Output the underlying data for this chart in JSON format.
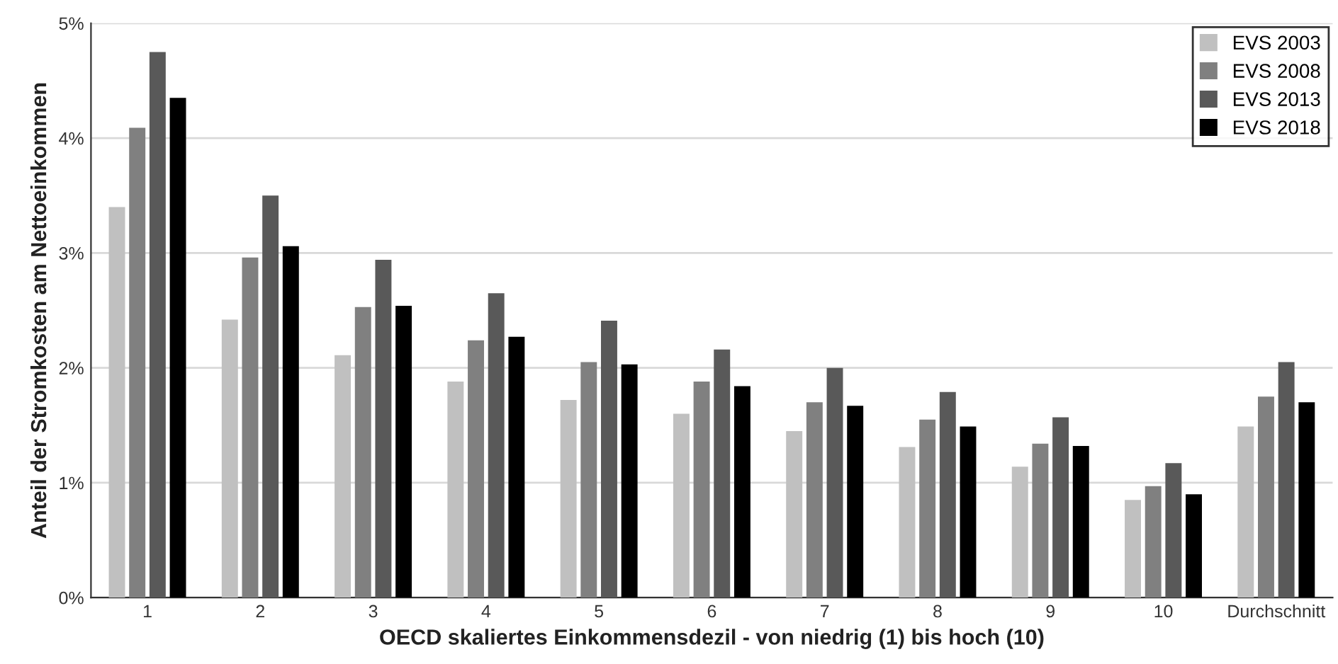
{
  "chart_data": {
    "type": "bar",
    "xlabel": "OECD skaliertes Einkommensdezil - von niedrig (1) bis hoch (10)",
    "ylabel": "Anteil der Stromkosten am Nettoeinkommen",
    "categories": [
      "1",
      "2",
      "3",
      "4",
      "5",
      "6",
      "7",
      "8",
      "9",
      "10",
      "Durchschnitt"
    ],
    "series": [
      {
        "name": "EVS 2003",
        "color": "#c0c0c0",
        "values": [
          3.4,
          2.42,
          2.11,
          1.88,
          1.72,
          1.6,
          1.45,
          1.31,
          1.14,
          0.85,
          1.49
        ]
      },
      {
        "name": "EVS 2008",
        "color": "#808080",
        "values": [
          4.09,
          2.96,
          2.53,
          2.24,
          2.05,
          1.88,
          1.7,
          1.55,
          1.34,
          0.97,
          1.75
        ]
      },
      {
        "name": "EVS 2013",
        "color": "#595959",
        "values": [
          4.75,
          3.5,
          2.94,
          2.65,
          2.41,
          2.16,
          2.0,
          1.79,
          1.57,
          1.17,
          2.05
        ]
      },
      {
        "name": "EVS 2018",
        "color": "#000000",
        "values": [
          4.35,
          3.06,
          2.54,
          2.27,
          2.03,
          1.84,
          1.67,
          1.49,
          1.32,
          0.9,
          1.7
        ]
      }
    ],
    "ylim": [
      0,
      5
    ],
    "yticks": [
      {
        "value": 0,
        "label": "0%"
      },
      {
        "value": 1,
        "label": "1%"
      },
      {
        "value": 2,
        "label": "2%"
      },
      {
        "value": 3,
        "label": "3%"
      },
      {
        "value": 4,
        "label": "4%"
      },
      {
        "value": 5,
        "label": "5%"
      }
    ],
    "grid": "y",
    "legend": "top right"
  }
}
